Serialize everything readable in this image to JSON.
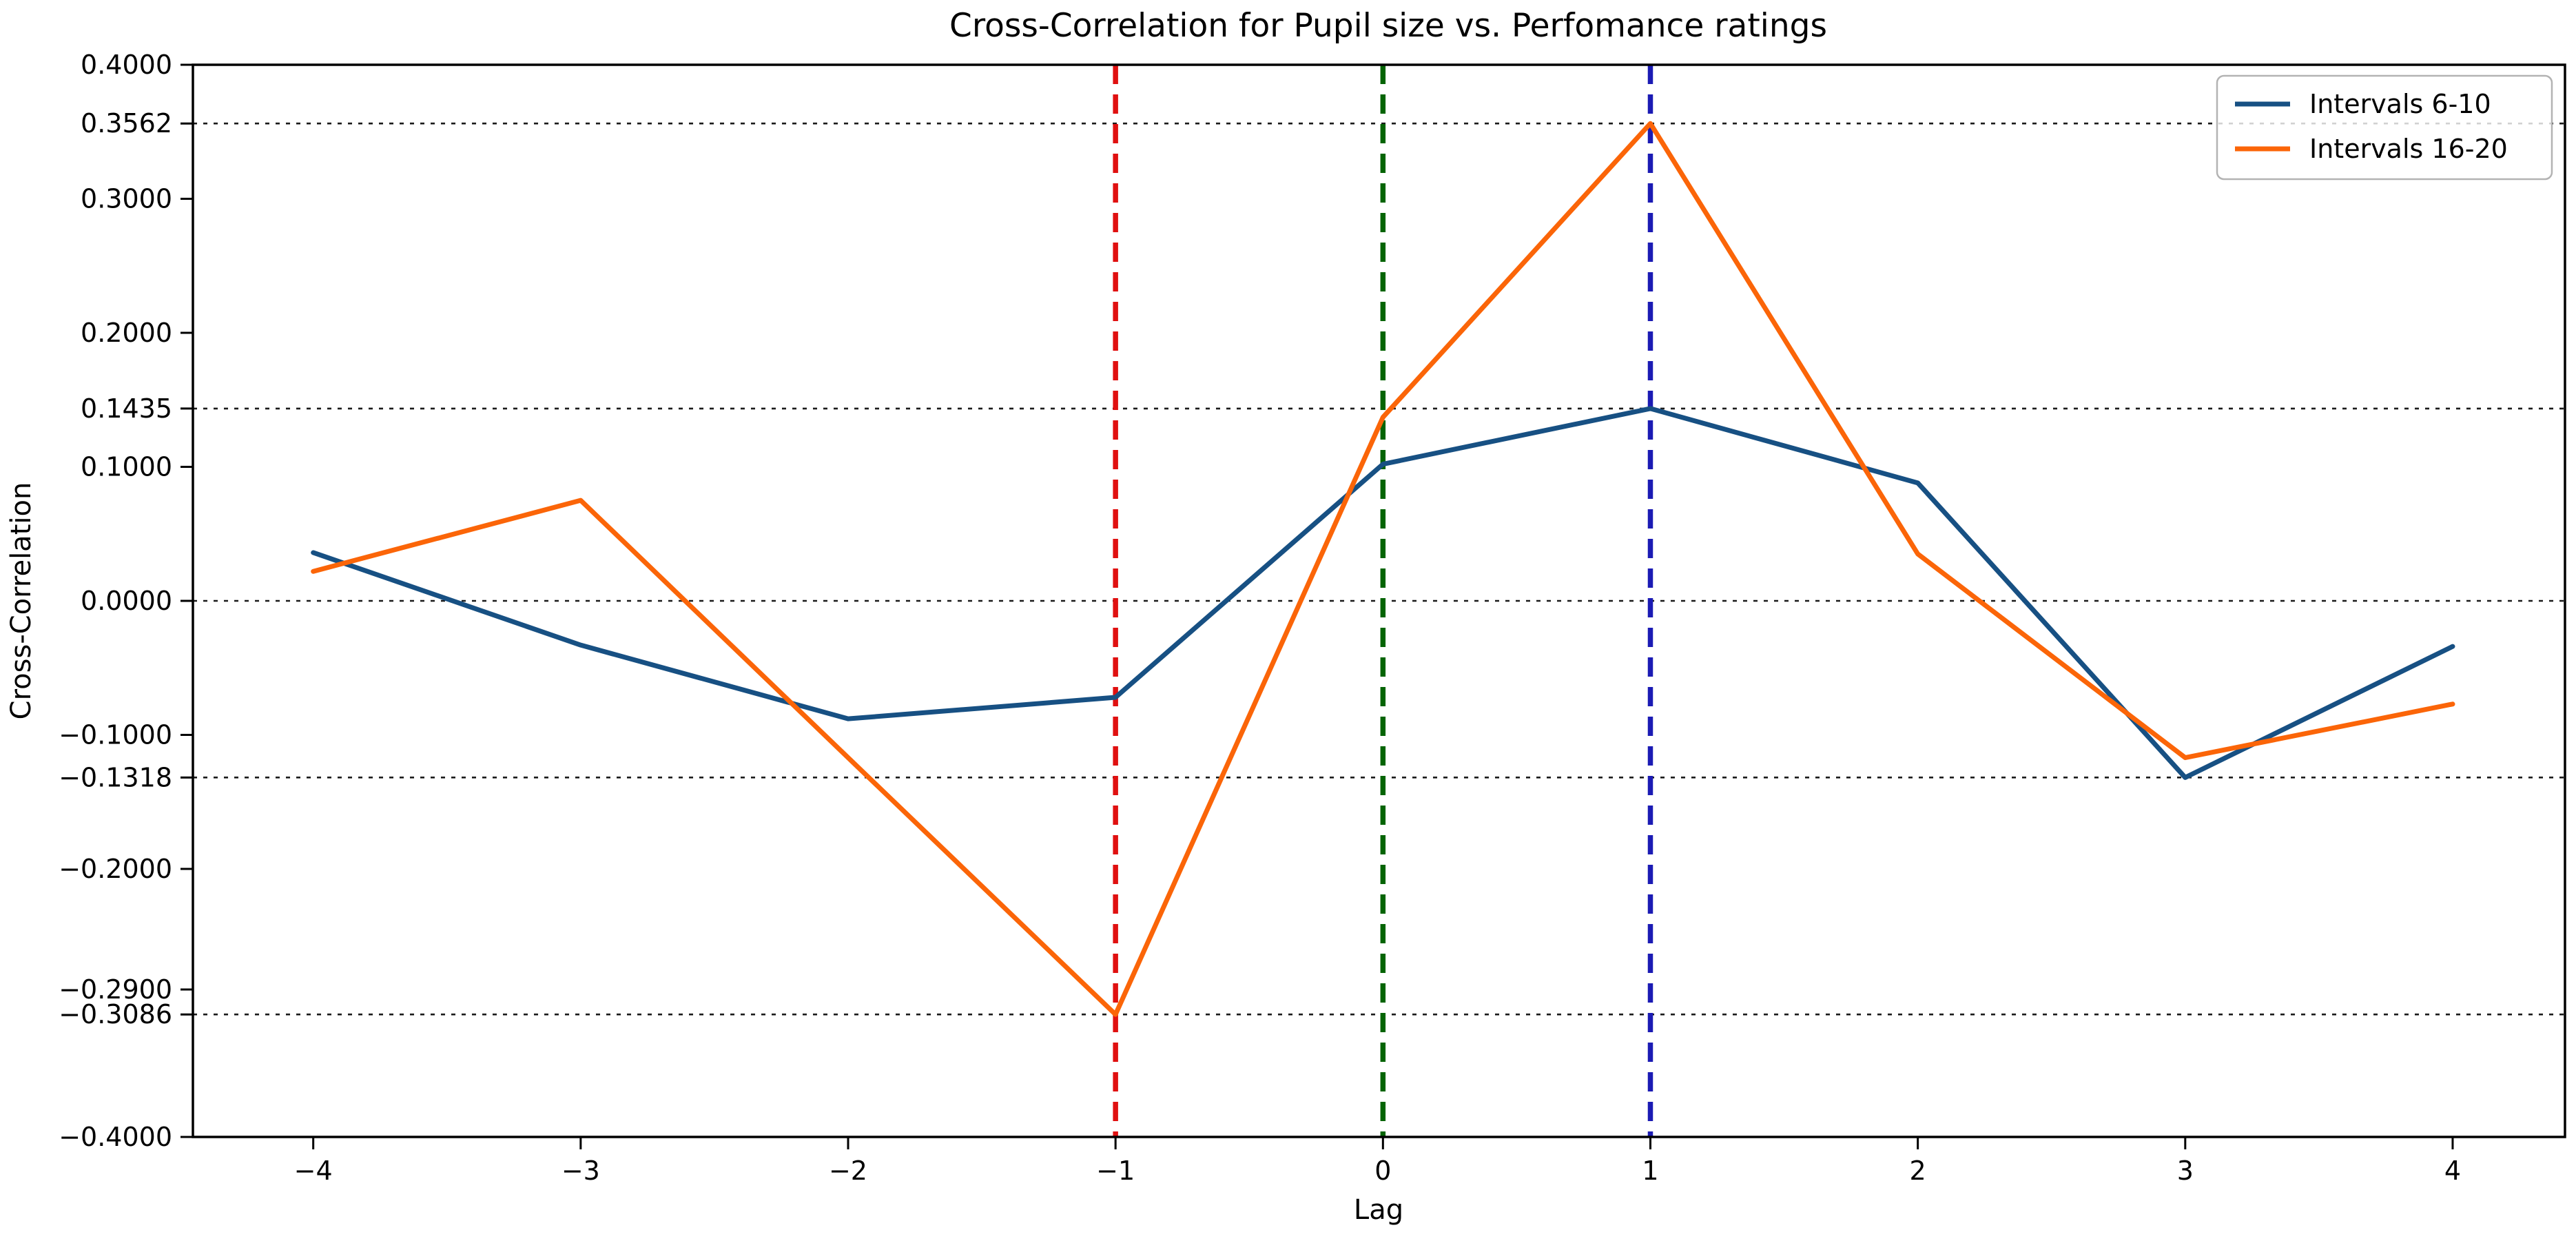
{
  "chart_data": {
    "type": "line",
    "title": "Cross-Correlation for Pupil size vs. Perfomance ratings",
    "xlabel": "Lag",
    "ylabel": "Cross-Correlation",
    "x": [
      -4,
      -3,
      -2,
      -1,
      0,
      1,
      2,
      3,
      4
    ],
    "series": [
      {
        "name": "Intervals 6-10",
        "color": "#175083",
        "values": [
          0.036,
          -0.033,
          -0.088,
          -0.072,
          0.102,
          0.1435,
          0.088,
          -0.1318,
          -0.034
        ]
      },
      {
        "name": "Intervals 16-20",
        "color": "#fb6508",
        "values": [
          0.022,
          0.075,
          -0.117,
          -0.3086,
          0.137,
          0.3562,
          0.035,
          -0.117,
          -0.077
        ]
      }
    ],
    "xlim": [
      -4.45,
      4.42
    ],
    "ylim": [
      -0.4,
      0.4
    ],
    "grid": "horizontal-dashed-at-marked-ticks-only",
    "legend_position": "top-right",
    "xticks": [
      {
        "value": -4,
        "label": "−4"
      },
      {
        "value": -3,
        "label": "−3"
      },
      {
        "value": -2,
        "label": "−2"
      },
      {
        "value": -1,
        "label": "−1"
      },
      {
        "value": 0,
        "label": "0"
      },
      {
        "value": 1,
        "label": "1"
      },
      {
        "value": 2,
        "label": "2"
      },
      {
        "value": 3,
        "label": "3"
      },
      {
        "value": 4,
        "label": "4"
      }
    ],
    "yticks": [
      {
        "value": 0.4,
        "label": "0.4000",
        "grid": false
      },
      {
        "value": 0.3562,
        "label": "0.3562",
        "grid": true
      },
      {
        "value": 0.3,
        "label": "0.3000",
        "grid": false
      },
      {
        "value": 0.2,
        "label": "0.2000",
        "grid": false
      },
      {
        "value": 0.1435,
        "label": "0.1435",
        "grid": true
      },
      {
        "value": 0.1,
        "label": "0.1000",
        "grid": false
      },
      {
        "value": 0.0,
        "label": "0.0000",
        "grid": true
      },
      {
        "value": -0.1,
        "label": "−0.1000",
        "grid": false
      },
      {
        "value": -0.1318,
        "label": "−0.1318",
        "grid": true
      },
      {
        "value": -0.2,
        "label": "−0.2000",
        "grid": false
      },
      {
        "value": -0.29,
        "label": "−0.2900",
        "grid": false
      },
      {
        "value": -0.3086,
        "label": "−0.3086",
        "grid": true
      },
      {
        "value": -0.4,
        "label": "−0.4000",
        "grid": false
      }
    ],
    "vlines": [
      {
        "x": -1,
        "color": "#e01010",
        "style": "dashed"
      },
      {
        "x": 0,
        "color": "#046404",
        "style": "dashed"
      },
      {
        "x": 1,
        "color": "#1b1bb4",
        "style": "dashed"
      }
    ],
    "colors": {
      "gridline": "#1a1a1a",
      "spine": "#000000",
      "background": "#ffffff",
      "legend_border": "#b3b3b3"
    }
  }
}
